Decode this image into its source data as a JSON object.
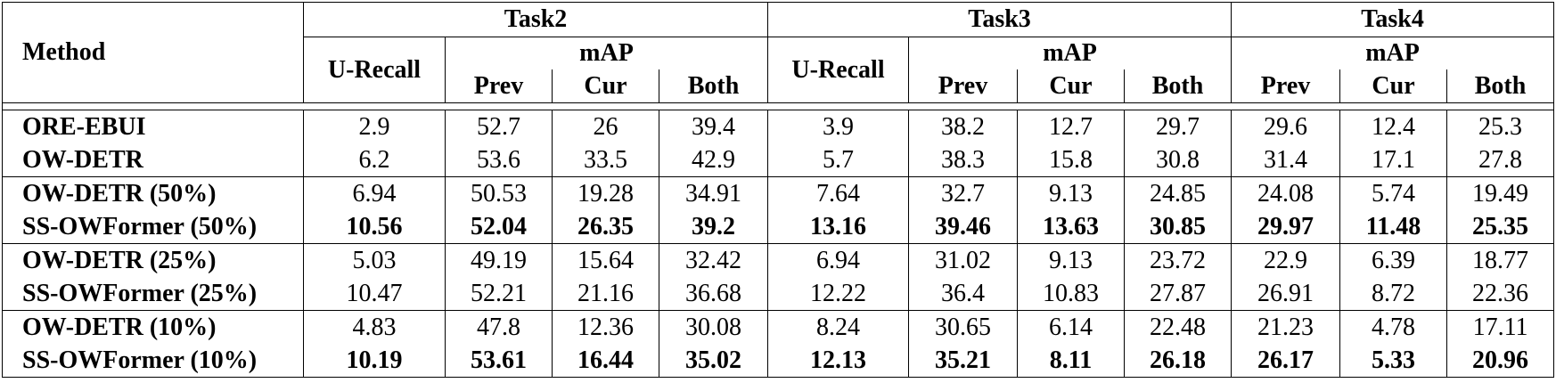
{
  "table": {
    "header": {
      "method": "Method",
      "tasks": [
        {
          "name": "Task2",
          "u_recall": "U-Recall",
          "map": "mAP",
          "columns": [
            "Prev",
            "Cur",
            "Both"
          ]
        },
        {
          "name": "Task3",
          "u_recall": "U-Recall",
          "map": "mAP",
          "columns": [
            "Prev",
            "Cur",
            "Both"
          ]
        },
        {
          "name": "Task4",
          "map": "mAP",
          "columns": [
            "Prev",
            "Cur",
            "Both"
          ]
        }
      ]
    },
    "groups": [
      {
        "rows": [
          {
            "method": "ORE-EBUI",
            "cells": [
              "2.9",
              "52.7",
              "26",
              "39.4",
              "3.9",
              "38.2",
              "12.7",
              "29.7",
              "29.6",
              "12.4",
              "25.3"
            ]
          },
          {
            "method": "OW-DETR",
            "cells": [
              "6.2",
              "53.6",
              "33.5",
              "42.9",
              "5.7",
              "38.3",
              "15.8",
              "30.8",
              "31.4",
              "17.1",
              "27.8"
            ]
          }
        ]
      },
      {
        "rows": [
          {
            "method": "OW-DETR (50%)",
            "cells": [
              "6.94",
              "50.53",
              "19.28",
              "34.91",
              "7.64",
              "32.7",
              "9.13",
              "24.85",
              "24.08",
              "5.74",
              "19.49"
            ]
          },
          {
            "method": "SS-OWFormer (50%)",
            "bold": true,
            "cells": [
              "10.56",
              "52.04",
              "26.35",
              "39.2",
              "13.16",
              "39.46",
              "13.63",
              "30.85",
              "29.97",
              "11.48",
              "25.35"
            ]
          }
        ]
      },
      {
        "rows": [
          {
            "method": "OW-DETR (25%)",
            "cells": [
              "5.03",
              "49.19",
              "15.64",
              "32.42",
              "6.94",
              "31.02",
              "9.13",
              "23.72",
              "22.9",
              "6.39",
              "18.77"
            ]
          },
          {
            "method": "SS-OWFormer (25%)",
            "cells": [
              "10.47",
              "52.21",
              "21.16",
              "36.68",
              "12.22",
              "36.4",
              "10.83",
              "27.87",
              "26.91",
              "8.72",
              "22.36"
            ]
          }
        ]
      },
      {
        "rows": [
          {
            "method": "OW-DETR (10%)",
            "cells": [
              "4.83",
              "47.8",
              "12.36",
              "30.08",
              "8.24",
              "30.65",
              "6.14",
              "22.48",
              "21.23",
              "4.78",
              "17.11"
            ]
          },
          {
            "method": "SS-OWFormer (10%)",
            "bold": true,
            "cells": [
              "10.19",
              "53.61",
              "16.44",
              "35.02",
              "12.13",
              "35.21",
              "8.11",
              "26.18",
              "26.17",
              "5.33",
              "20.96"
            ]
          }
        ]
      }
    ]
  }
}
